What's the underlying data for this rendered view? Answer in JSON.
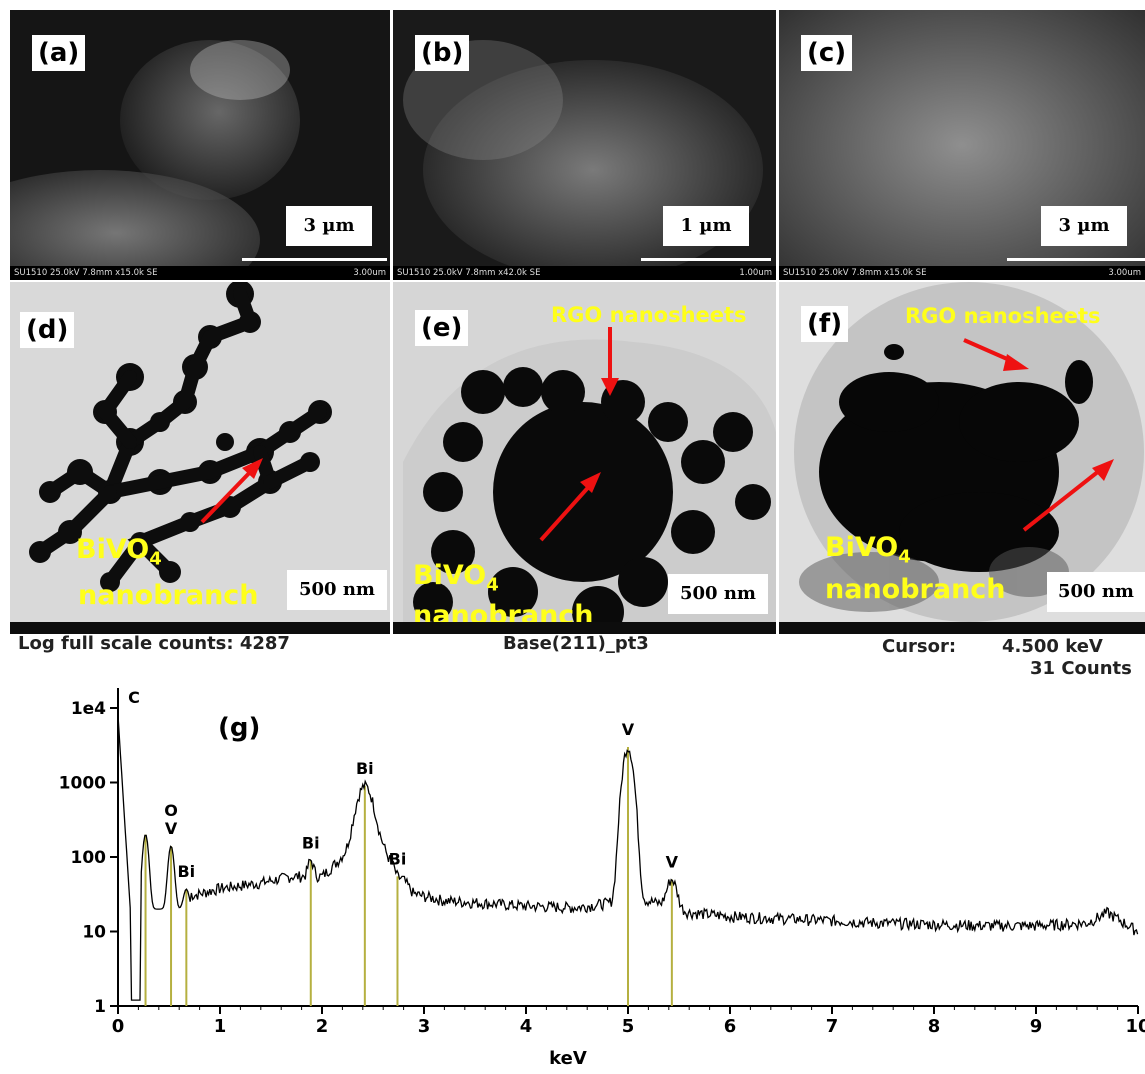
{
  "panels": {
    "a": {
      "label": "(a)",
      "scale": "3 µm",
      "info": "SU1510 25.0kV 7.8mm x15.0k SE",
      "bar_text": "3.00um"
    },
    "b": {
      "label": "(b)",
      "scale": "1 µm",
      "info": "SU1510 25.0kV 7.8mm x42.0k SE",
      "bar_text": "1.00um"
    },
    "c": {
      "label": "(c)",
      "scale": "3 µm",
      "info": "SU1510 25.0kV 7.8mm x15.0k SE",
      "bar_text": "3.00um"
    },
    "d": {
      "label": "(d)",
      "scale": "500 nm",
      "annot1": "BiVO",
      "annot1_sub": "4",
      "annot2": "nanobranch"
    },
    "e": {
      "label": "(e)",
      "scale": "500 nm",
      "annot1": "BiVO",
      "annot1_sub": "4",
      "annot2": "nanobranch",
      "annot3": "RGO nanosheets"
    },
    "f": {
      "label": "(f)",
      "scale": "500 nm",
      "annot1": "BiVO",
      "annot1_sub": "4",
      "annot2": "nanobranch",
      "annot3": "RGO nanosheets"
    }
  },
  "eds_header": {
    "left": "Log full scale counts: 4287",
    "center": "Base(211)_pt3",
    "cursor_label": "Cursor:",
    "cursor_value": "4.500 keV",
    "counts": "31 Counts"
  },
  "chart_data": {
    "type": "line",
    "panel_label": "(g)",
    "xlabel": "keV",
    "ylabel": "",
    "xlim": [
      0,
      10
    ],
    "ylim": [
      1,
      10000
    ],
    "yscale": "log",
    "x_ticks": [
      "0",
      "1",
      "2",
      "3",
      "4",
      "5",
      "6",
      "7",
      "8",
      "9",
      "10"
    ],
    "y_ticks": [
      "1",
      "10",
      "100",
      "1000",
      "1e4"
    ],
    "y_tick_values": [
      1,
      10,
      100,
      1000,
      10000
    ],
    "element_lines_color": "#b5b040",
    "peaks": [
      {
        "label": "C",
        "x": 0.0,
        "y": 8000
      },
      {
        "label": "",
        "x": 0.27,
        "y": 200
      },
      {
        "label": "O\nV",
        "x": 0.52,
        "y": 140
      },
      {
        "label": "Bi",
        "x": 0.67,
        "y": 37
      },
      {
        "label": "Bi",
        "x": 1.89,
        "y": 90
      },
      {
        "label": "Bi",
        "x": 2.42,
        "y": 900
      },
      {
        "label": "Bi",
        "x": 2.74,
        "y": 55
      },
      {
        "label": "V",
        "x": 5.0,
        "y": 3000
      },
      {
        "label": "V",
        "x": 5.43,
        "y": 50
      }
    ],
    "baseline": [
      [
        0.72,
        30
      ],
      [
        1.0,
        38
      ],
      [
        1.4,
        45
      ],
      [
        1.7,
        55
      ],
      [
        2.0,
        55
      ],
      [
        2.2,
        100
      ],
      [
        2.6,
        120
      ],
      [
        2.9,
        32
      ],
      [
        3.2,
        26
      ],
      [
        3.6,
        24
      ],
      [
        4.0,
        22
      ],
      [
        4.5,
        21
      ],
      [
        4.8,
        24
      ],
      [
        5.2,
        26
      ],
      [
        5.6,
        18
      ],
      [
        6.0,
        16
      ],
      [
        6.5,
        15
      ],
      [
        7.0,
        14
      ],
      [
        7.5,
        13
      ],
      [
        8.0,
        12.5
      ],
      [
        8.5,
        12
      ],
      [
        9.0,
        12
      ],
      [
        9.5,
        13
      ],
      [
        9.7,
        18
      ],
      [
        10.0,
        10
      ]
    ]
  }
}
